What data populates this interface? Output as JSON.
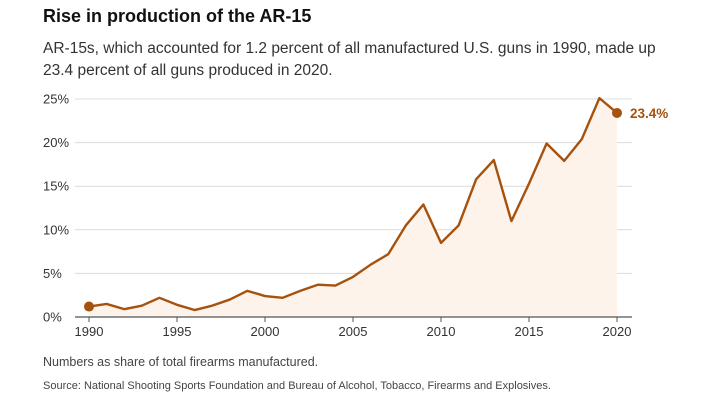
{
  "header": {
    "title": "Rise in production of the AR-15",
    "subtitle": "AR-15s, which accounted for 1.2 percent of all manufactured U.S. guns in 1990, made up 23.4 percent of all guns produced in 2020."
  },
  "footer": {
    "note": "Numbers as share of total firearms manufactured.",
    "source": "Source: National Shooting Sports Foundation and Bureau of Alcohol, Tobacco, Firearms and Explosives."
  },
  "colors": {
    "line": "#a6520f",
    "fill": "#fdf3ea",
    "grid": "#dcdcdc",
    "axis": "#555555"
  },
  "chart_data": {
    "type": "line",
    "x": [
      1990,
      1991,
      1992,
      1993,
      1994,
      1995,
      1996,
      1997,
      1998,
      1999,
      2000,
      2001,
      2002,
      2003,
      2004,
      2005,
      2006,
      2007,
      2008,
      2009,
      2010,
      2011,
      2012,
      2013,
      2014,
      2015,
      2016,
      2017,
      2018,
      2019,
      2020
    ],
    "y": [
      1.2,
      1.5,
      0.9,
      1.3,
      2.2,
      1.4,
      0.8,
      1.3,
      2.0,
      3.0,
      2.4,
      2.2,
      3.0,
      3.7,
      3.6,
      4.6,
      6.0,
      7.2,
      10.5,
      12.9,
      8.5,
      10.5,
      15.8,
      18.0,
      11.0,
      15.3,
      19.9,
      17.9,
      20.4,
      25.1,
      23.4
    ],
    "xlim": [
      1990,
      2020
    ],
    "ylim": [
      0,
      25
    ],
    "x_ticks": [
      1990,
      1995,
      2000,
      2005,
      2010,
      2015,
      2020
    ],
    "y_ticks": [
      0,
      5,
      10,
      15,
      20,
      25
    ],
    "y_tick_labels": [
      "0%",
      "5%",
      "10%",
      "15%",
      "20%",
      "25%"
    ],
    "end_label": "23.4%",
    "highlight_points": [
      1990,
      2020
    ],
    "area_fill": true,
    "grid": true
  }
}
